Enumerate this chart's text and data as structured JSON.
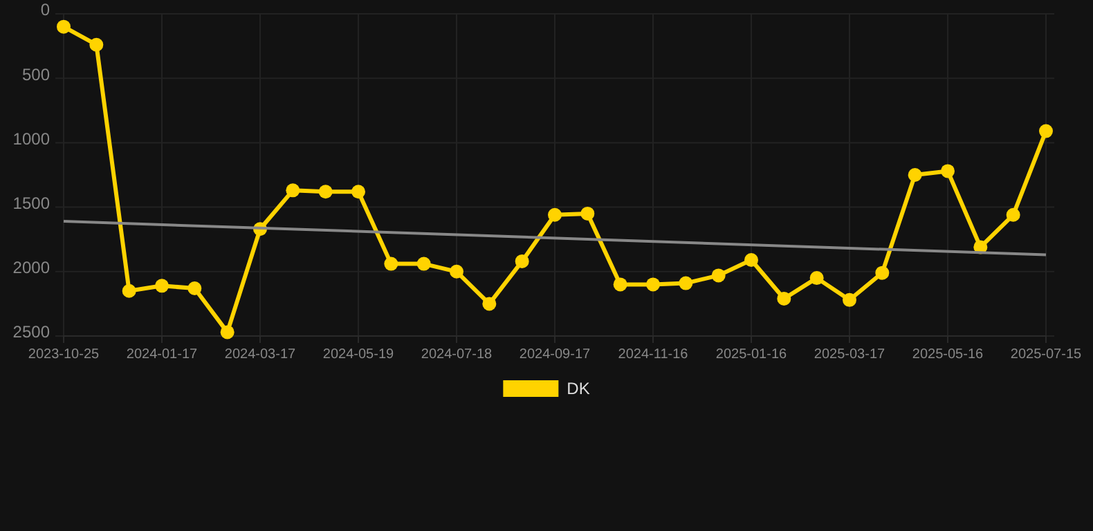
{
  "chart_data": {
    "type": "line",
    "categories": [
      "2023-10-25",
      null,
      null,
      "2024-01-17",
      null,
      null,
      "2024-03-17",
      null,
      null,
      "2024-05-19",
      null,
      null,
      "2024-07-18",
      null,
      null,
      "2024-09-17",
      null,
      null,
      "2024-11-16",
      null,
      null,
      "2025-01-16",
      null,
      null,
      "2025-03-17",
      null,
      null,
      "2025-05-16",
      null,
      null,
      "2025-07-15"
    ],
    "series": [
      {
        "name": "DK",
        "color": "#ffd300",
        "marker": "circle",
        "values": [
          100,
          240,
          2150,
          2110,
          2130,
          2470,
          1670,
          1370,
          1380,
          1380,
          1940,
          1940,
          2000,
          2250,
          1920,
          1560,
          1550,
          2100,
          2100,
          2090,
          2030,
          1910,
          2210,
          2050,
          2220,
          2010,
          1250,
          1220,
          1810,
          1560,
          910
        ]
      },
      {
        "color": "#888888",
        "marker": "none",
        "values": [
          1610,
          null,
          null,
          null,
          null,
          null,
          null,
          null,
          null,
          null,
          null,
          null,
          null,
          null,
          null,
          null,
          null,
          null,
          null,
          null,
          null,
          null,
          null,
          null,
          null,
          null,
          null,
          null,
          null,
          null,
          1870
        ]
      }
    ],
    "ylim": [
      2500,
      0
    ],
    "yticks": [
      0,
      500,
      1000,
      1500,
      2000,
      2500
    ],
    "grid": true,
    "legend": "bottom"
  }
}
